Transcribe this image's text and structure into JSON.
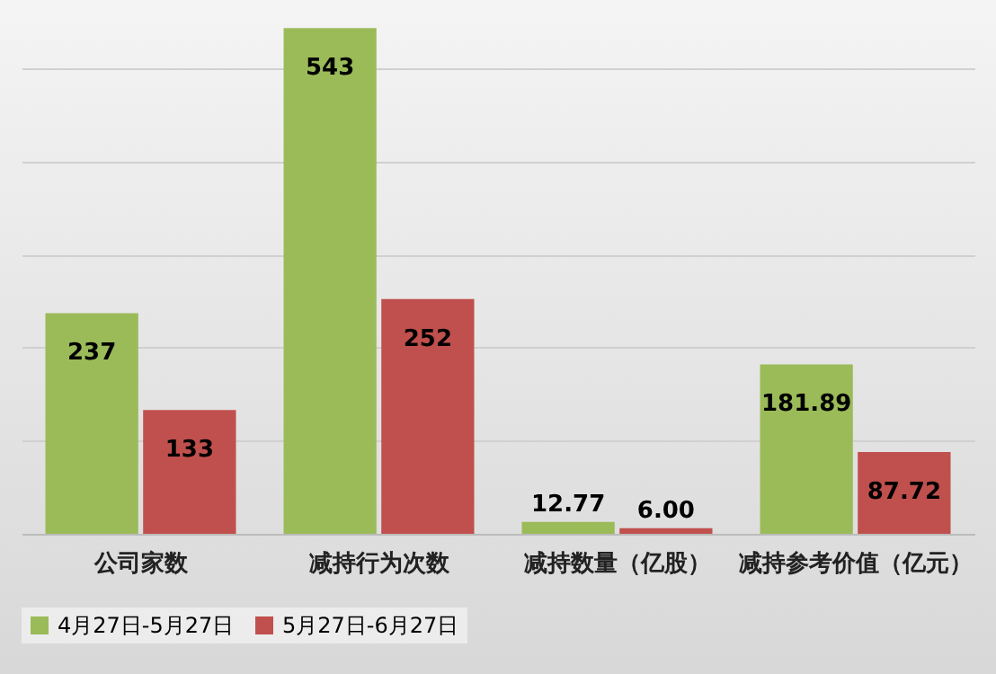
{
  "chart_data": {
    "type": "bar",
    "categories": [
      "公司家数",
      "减持行为次数",
      "减持数量（亿股）",
      "减持参考价值（亿元）"
    ],
    "series": [
      {
        "name": "4月27日-5月27日",
        "color": "#9bbb59",
        "values": [
          237,
          543,
          12.77,
          181.89
        ],
        "value_labels": [
          "237",
          "543",
          "12.77",
          "181.89"
        ]
      },
      {
        "name": "5月27日-6月27日",
        "color": "#c0504d",
        "values": [
          133,
          252,
          6.0,
          87.72
        ],
        "value_labels": [
          "133",
          "252",
          "6.00",
          "87.72"
        ]
      }
    ],
    "relative": false,
    "grid": "y",
    "legend": "bottom"
  }
}
